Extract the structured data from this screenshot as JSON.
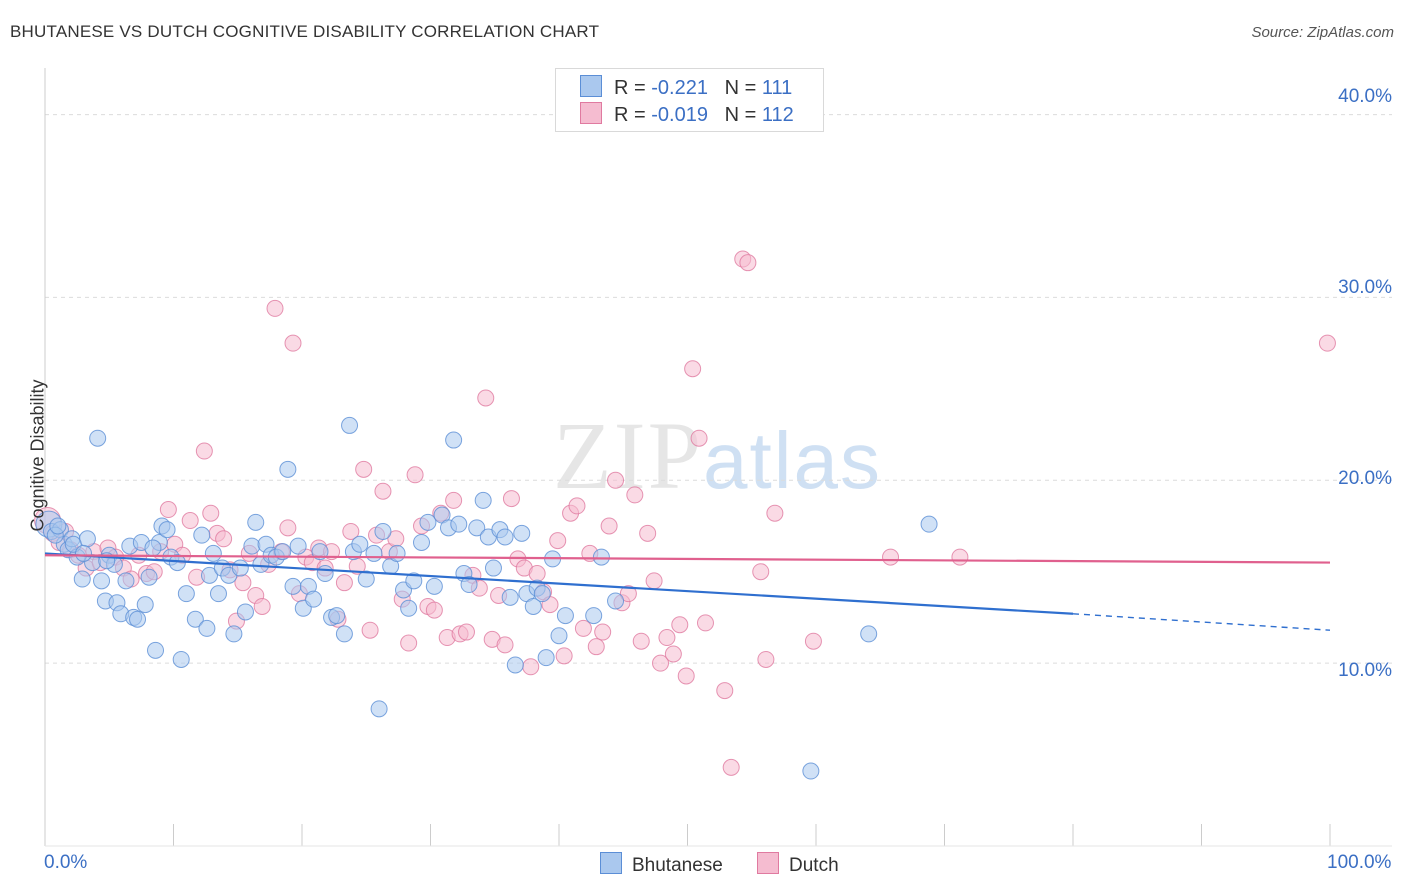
{
  "title": "BHUTANESE VS DUTCH COGNITIVE DISABILITY CORRELATION CHART",
  "source": "Source: ZipAtlas.com",
  "watermark": {
    "zip": "ZIP",
    "atlas": "atlas"
  },
  "colors": {
    "blue": "#5b8ed6",
    "blue_fill": "#aac8ee",
    "pink": "#e07aa0",
    "pink_fill": "#f5bcd0",
    "blue_line": "#2f6fcf",
    "pink_line": "#e0608e",
    "tick_text": "#3b6fc4"
  },
  "legend_top": {
    "rows": [
      {
        "r_label": "R =",
        "r_value": "-0.221",
        "n_label": "N =",
        "n_value": "111"
      },
      {
        "r_label": "R =",
        "r_value": "-0.019",
        "n_label": "N =",
        "n_value": "112"
      }
    ]
  },
  "chart_data": {
    "type": "scatter",
    "title": "BHUTANESE VS DUTCH COGNITIVE DISABILITY CORRELATION CHART",
    "xlabel": "",
    "ylabel": "Cognitive Disability",
    "xlim": [
      0,
      100
    ],
    "ylim": [
      0,
      42
    ],
    "x_tick_labels": [
      "0.0%",
      "100.0%"
    ],
    "y_ticks": [
      10,
      20,
      30,
      40
    ],
    "y_tick_labels": [
      "10.0%",
      "20.0%",
      "30.0%",
      "40.0%"
    ],
    "grid": "horizontal dashed",
    "legend": "bottom",
    "series": [
      {
        "name": "Bhutanese",
        "r": -0.221,
        "n": 111,
        "trend": {
          "x0": 0,
          "y0": 16.0,
          "x1": 80,
          "y1": 12.7,
          "dashed_to_x": 100,
          "dashed_to_y": 11.8
        },
        "points": [
          [
            0.3,
            17.6
          ],
          [
            0.5,
            17.2
          ],
          [
            1.2,
            17.3
          ],
          [
            1.5,
            16.5
          ],
          [
            1.8,
            16.2
          ],
          [
            2.1,
            16.8
          ],
          [
            2.5,
            15.8
          ],
          [
            2.9,
            14.6
          ],
          [
            3.3,
            16.8
          ],
          [
            3.7,
            15.5
          ],
          [
            4.1,
            22.3
          ],
          [
            4.4,
            14.5
          ],
          [
            4.7,
            13.4
          ],
          [
            5.0,
            15.9
          ],
          [
            5.4,
            15.4
          ],
          [
            5.6,
            13.3
          ],
          [
            5.9,
            12.7
          ],
          [
            6.3,
            14.5
          ],
          [
            6.6,
            16.4
          ],
          [
            6.9,
            12.5
          ],
          [
            7.2,
            12.4
          ],
          [
            7.5,
            16.6
          ],
          [
            7.8,
            13.2
          ],
          [
            8.1,
            14.7
          ],
          [
            8.6,
            10.7
          ],
          [
            8.9,
            16.6
          ],
          [
            9.1,
            17.5
          ],
          [
            9.5,
            17.3
          ],
          [
            9.8,
            15.8
          ],
          [
            10.3,
            15.5
          ],
          [
            10.6,
            10.2
          ],
          [
            11.0,
            13.8
          ],
          [
            11.7,
            12.4
          ],
          [
            12.2,
            17.0
          ],
          [
            12.6,
            11.9
          ],
          [
            12.8,
            14.8
          ],
          [
            13.1,
            16.0
          ],
          [
            13.5,
            13.8
          ],
          [
            13.8,
            15.2
          ],
          [
            14.3,
            14.8
          ],
          [
            14.7,
            11.6
          ],
          [
            15.2,
            15.2
          ],
          [
            15.6,
            12.8
          ],
          [
            16.1,
            16.4
          ],
          [
            16.4,
            17.7
          ],
          [
            16.8,
            15.4
          ],
          [
            17.2,
            16.5
          ],
          [
            17.6,
            15.9
          ],
          [
            18.0,
            15.8
          ],
          [
            18.5,
            16.1
          ],
          [
            18.9,
            20.6
          ],
          [
            19.3,
            14.2
          ],
          [
            19.7,
            16.4
          ],
          [
            20.1,
            13.0
          ],
          [
            20.5,
            14.2
          ],
          [
            20.9,
            13.5
          ],
          [
            21.4,
            16.1
          ],
          [
            21.8,
            14.9
          ],
          [
            22.3,
            12.5
          ],
          [
            22.7,
            12.6
          ],
          [
            23.3,
            11.6
          ],
          [
            23.7,
            23.0
          ],
          [
            24.0,
            16.1
          ],
          [
            24.5,
            16.5
          ],
          [
            25.0,
            14.6
          ],
          [
            25.6,
            16.0
          ],
          [
            26.0,
            7.5
          ],
          [
            26.3,
            17.2
          ],
          [
            26.9,
            15.3
          ],
          [
            27.4,
            16.0
          ],
          [
            27.9,
            14.0
          ],
          [
            28.3,
            13.0
          ],
          [
            28.7,
            14.5
          ],
          [
            29.3,
            16.6
          ],
          [
            29.8,
            17.7
          ],
          [
            30.3,
            14.2
          ],
          [
            30.9,
            18.1
          ],
          [
            31.4,
            17.4
          ],
          [
            31.8,
            22.2
          ],
          [
            32.2,
            17.6
          ],
          [
            32.6,
            14.9
          ],
          [
            33.0,
            14.3
          ],
          [
            33.6,
            17.4
          ],
          [
            34.1,
            18.9
          ],
          [
            34.5,
            16.9
          ],
          [
            34.9,
            15.2
          ],
          [
            35.4,
            17.3
          ],
          [
            35.8,
            16.9
          ],
          [
            36.2,
            13.6
          ],
          [
            36.6,
            9.9
          ],
          [
            37.1,
            17.1
          ],
          [
            37.5,
            13.8
          ],
          [
            38.0,
            13.1
          ],
          [
            38.3,
            14.1
          ],
          [
            38.7,
            13.8
          ],
          [
            39.0,
            10.3
          ],
          [
            39.5,
            15.7
          ],
          [
            40.0,
            11.5
          ],
          [
            40.5,
            12.6
          ],
          [
            42.7,
            12.6
          ],
          [
            43.3,
            15.8
          ],
          [
            44.4,
            13.4
          ],
          [
            59.6,
            4.1
          ],
          [
            64.1,
            11.6
          ],
          [
            68.8,
            17.6
          ],
          [
            0.8,
            17.0
          ],
          [
            1.0,
            17.5
          ],
          [
            2.2,
            16.5
          ],
          [
            3.0,
            16.0
          ],
          [
            4.8,
            15.6
          ],
          [
            8.4,
            16.3
          ]
        ]
      },
      {
        "name": "Dutch",
        "r": -0.019,
        "n": 112,
        "trend": {
          "x0": 0,
          "y0": 15.9,
          "x1": 100,
          "y1": 15.5
        },
        "points": [
          [
            0.2,
            17.8
          ],
          [
            0.6,
            17.1
          ],
          [
            1.1,
            16.6
          ],
          [
            1.6,
            17.2
          ],
          [
            2.0,
            16.2
          ],
          [
            2.6,
            15.9
          ],
          [
            3.2,
            15.2
          ],
          [
            3.8,
            16.1
          ],
          [
            4.3,
            15.5
          ],
          [
            4.9,
            16.3
          ],
          [
            5.5,
            15.8
          ],
          [
            6.1,
            15.2
          ],
          [
            6.7,
            14.6
          ],
          [
            7.3,
            15.9
          ],
          [
            7.9,
            14.9
          ],
          [
            8.5,
            15.0
          ],
          [
            9.0,
            16.1
          ],
          [
            9.6,
            18.4
          ],
          [
            10.1,
            16.5
          ],
          [
            10.7,
            15.9
          ],
          [
            11.3,
            17.8
          ],
          [
            11.8,
            14.7
          ],
          [
            12.4,
            21.6
          ],
          [
            12.9,
            18.2
          ],
          [
            13.4,
            17.1
          ],
          [
            13.9,
            16.8
          ],
          [
            14.4,
            15.1
          ],
          [
            14.9,
            12.3
          ],
          [
            15.4,
            14.4
          ],
          [
            15.9,
            16.0
          ],
          [
            16.4,
            13.7
          ],
          [
            16.9,
            13.1
          ],
          [
            17.4,
            15.4
          ],
          [
            17.9,
            29.4
          ],
          [
            18.4,
            16.1
          ],
          [
            18.9,
            17.4
          ],
          [
            19.3,
            27.5
          ],
          [
            19.8,
            13.8
          ],
          [
            20.3,
            15.8
          ],
          [
            20.8,
            15.5
          ],
          [
            21.3,
            16.3
          ],
          [
            21.8,
            15.2
          ],
          [
            22.3,
            16.1
          ],
          [
            22.8,
            12.4
          ],
          [
            23.3,
            14.4
          ],
          [
            23.8,
            17.2
          ],
          [
            24.3,
            15.3
          ],
          [
            24.8,
            20.6
          ],
          [
            25.3,
            11.8
          ],
          [
            25.8,
            17.0
          ],
          [
            26.3,
            19.4
          ],
          [
            26.8,
            16.1
          ],
          [
            27.3,
            16.8
          ],
          [
            27.8,
            13.5
          ],
          [
            28.3,
            11.1
          ],
          [
            28.8,
            20.3
          ],
          [
            29.3,
            17.5
          ],
          [
            29.8,
            13.1
          ],
          [
            30.3,
            12.9
          ],
          [
            30.8,
            18.2
          ],
          [
            31.3,
            11.4
          ],
          [
            31.8,
            18.9
          ],
          [
            32.3,
            11.6
          ],
          [
            32.8,
            11.7
          ],
          [
            33.3,
            14.8
          ],
          [
            33.8,
            14.1
          ],
          [
            34.3,
            24.5
          ],
          [
            34.8,
            11.3
          ],
          [
            35.3,
            13.7
          ],
          [
            35.8,
            11.0
          ],
          [
            36.3,
            19.0
          ],
          [
            36.8,
            15.7
          ],
          [
            37.3,
            15.2
          ],
          [
            37.8,
            9.8
          ],
          [
            38.3,
            14.9
          ],
          [
            38.8,
            13.9
          ],
          [
            39.3,
            13.2
          ],
          [
            39.9,
            16.7
          ],
          [
            40.4,
            10.4
          ],
          [
            40.9,
            18.2
          ],
          [
            41.4,
            18.6
          ],
          [
            41.9,
            11.9
          ],
          [
            42.4,
            16.0
          ],
          [
            42.9,
            10.9
          ],
          [
            43.4,
            11.7
          ],
          [
            43.9,
            17.5
          ],
          [
            44.4,
            20.0
          ],
          [
            44.9,
            13.3
          ],
          [
            45.4,
            13.8
          ],
          [
            45.9,
            19.2
          ],
          [
            46.4,
            11.2
          ],
          [
            46.9,
            17.1
          ],
          [
            47.4,
            14.5
          ],
          [
            47.9,
            10.0
          ],
          [
            48.4,
            11.4
          ],
          [
            48.9,
            10.5
          ],
          [
            49.4,
            12.1
          ],
          [
            49.9,
            9.3
          ],
          [
            50.4,
            26.1
          ],
          [
            50.9,
            22.3
          ],
          [
            51.4,
            12.2
          ],
          [
            52.9,
            8.5
          ],
          [
            53.4,
            4.3
          ],
          [
            54.3,
            32.1
          ],
          [
            54.7,
            31.9
          ],
          [
            55.7,
            15.0
          ],
          [
            56.1,
            10.2
          ],
          [
            56.8,
            18.2
          ],
          [
            59.8,
            11.2
          ],
          [
            65.8,
            15.8
          ],
          [
            71.2,
            15.8
          ],
          [
            99.8,
            27.5
          ]
        ]
      }
    ]
  },
  "legend_bottom": [
    {
      "label": "Bhutanese"
    },
    {
      "label": "Dutch"
    }
  ]
}
